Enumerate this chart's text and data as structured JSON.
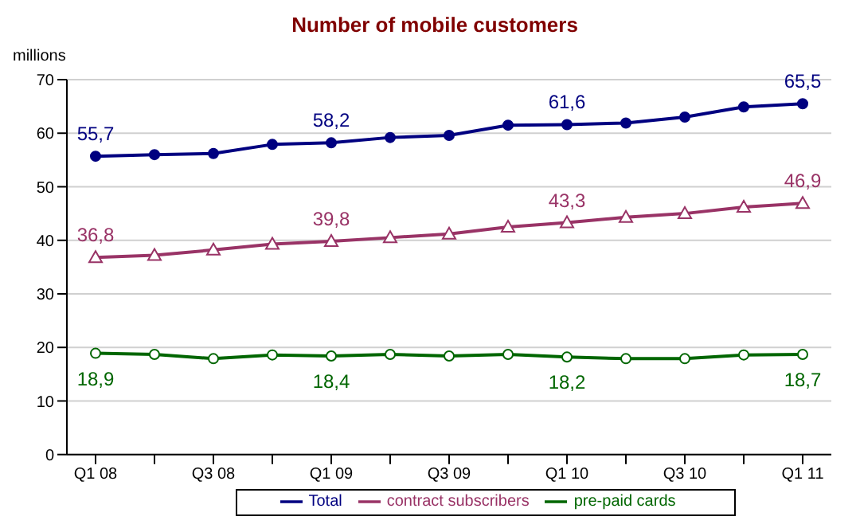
{
  "chart_data": {
    "type": "line",
    "title": "Number of mobile customers",
    "ylabel": "millions",
    "categories": [
      "Q1 08",
      null,
      "Q3 08",
      null,
      "Q1 09",
      null,
      "Q3 09",
      null,
      "Q1 10",
      null,
      "Q3 10",
      null,
      "Q1 11"
    ],
    "series": [
      {
        "name": "contract subscribers",
        "color": "#993366",
        "marker": "triangle",
        "values": [
          36.8,
          37.2,
          38.2,
          39.3,
          39.8,
          40.5,
          41.2,
          42.5,
          43.3,
          44.3,
          45.0,
          46.2,
          46.9
        ],
        "value_labels": [
          "36,8",
          null,
          null,
          null,
          "39,8",
          null,
          null,
          null,
          "43,3",
          null,
          null,
          null,
          "46,9"
        ]
      },
      {
        "name": "pre-paid cards",
        "color": "#006600",
        "marker": "circle",
        "values": [
          18.9,
          18.7,
          17.9,
          18.6,
          18.4,
          18.7,
          18.4,
          18.7,
          18.2,
          17.9,
          17.9,
          18.6,
          18.7
        ],
        "value_labels": [
          "18,9",
          null,
          null,
          null,
          "18,4",
          null,
          null,
          null,
          "18,2",
          null,
          null,
          null,
          "18,7"
        ]
      },
      {
        "name": "Total",
        "color": "#000080",
        "marker": "circle",
        "values": [
          55.7,
          56.0,
          56.2,
          57.9,
          58.2,
          59.2,
          59.6,
          61.5,
          61.6,
          61.9,
          63.0,
          64.9,
          65.5
        ],
        "value_labels": [
          "55,7",
          null,
          null,
          null,
          "58,2",
          null,
          null,
          null,
          "61,6",
          null,
          null,
          null,
          "65,5"
        ]
      }
    ],
    "ylim": [
      0,
      70
    ],
    "yticks": [
      0,
      10,
      20,
      30,
      40,
      50,
      60,
      70
    ],
    "grid": "y",
    "legend": "bottom"
  }
}
